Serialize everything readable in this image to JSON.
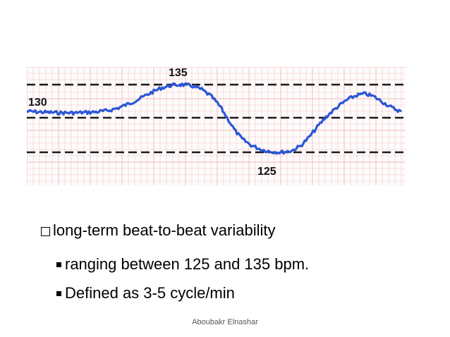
{
  "figure": {
    "label_top": "135",
    "label_left": "130",
    "label_bottom": "125",
    "grid_color": "#f4c7c7",
    "trace_color": "#2b56d6",
    "dash_color": "#1a1a1a"
  },
  "bullets": {
    "main": "long-term beat-to-beat variability",
    "sub1": "ranging between 125 and 135 bpm.",
    "sub2": "Defined as 3-5 cycle/min"
  },
  "footer": {
    "author": "Aboubakr Elnashar"
  }
}
